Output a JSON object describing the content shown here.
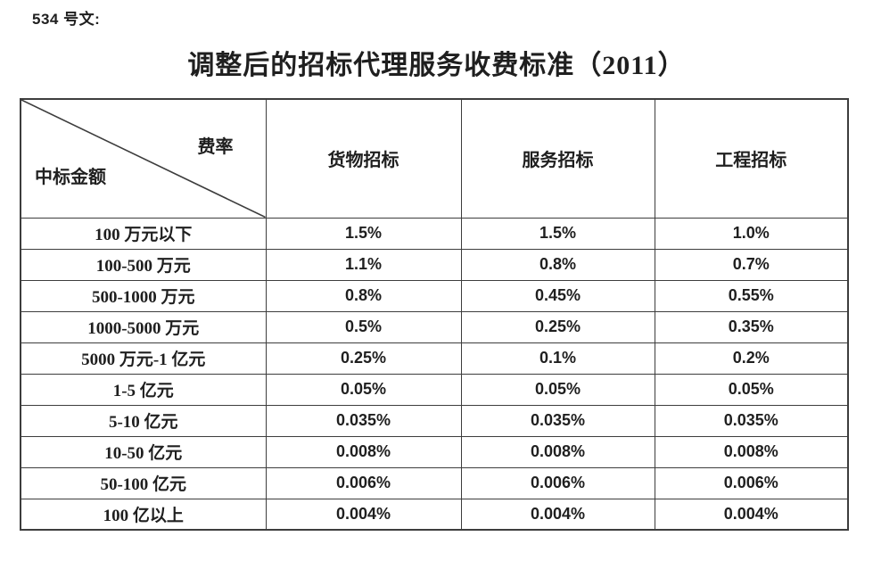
{
  "doc": {
    "label": "534 号文:",
    "title": "调整后的招标代理服务收费标准（2011）"
  },
  "table": {
    "corner": {
      "top_right": "费率",
      "bottom_left": "中标金额"
    },
    "columns": [
      "货物招标",
      "服务招标",
      "工程招标"
    ],
    "rows": [
      {
        "range": "100 万元以下",
        "rates": [
          "1.5%",
          "1.5%",
          "1.0%"
        ]
      },
      {
        "range": "100-500 万元",
        "rates": [
          "1.1%",
          "0.8%",
          "0.7%"
        ]
      },
      {
        "range": "500-1000 万元",
        "rates": [
          "0.8%",
          "0.45%",
          "0.55%"
        ]
      },
      {
        "range": "1000-5000 万元",
        "rates": [
          "0.5%",
          "0.25%",
          "0.35%"
        ]
      },
      {
        "range": "5000 万元-1 亿元",
        "rates": [
          "0.25%",
          "0.1%",
          "0.2%"
        ]
      },
      {
        "range": "1-5 亿元",
        "rates": [
          "0.05%",
          "0.05%",
          "0.05%"
        ]
      },
      {
        "range": "5-10 亿元",
        "rates": [
          "0.035%",
          "0.035%",
          "0.035%"
        ]
      },
      {
        "range": "10-50 亿元",
        "rates": [
          "0.008%",
          "0.008%",
          "0.008%"
        ]
      },
      {
        "range": "50-100 亿元",
        "rates": [
          "0.006%",
          "0.006%",
          "0.006%"
        ]
      },
      {
        "range": "100 亿以上",
        "rates": [
          "0.004%",
          "0.004%",
          "0.004%"
        ]
      }
    ]
  },
  "colors": {
    "text": "#1f1f1f",
    "border": "#3d3d3d",
    "background": "#ffffff"
  }
}
